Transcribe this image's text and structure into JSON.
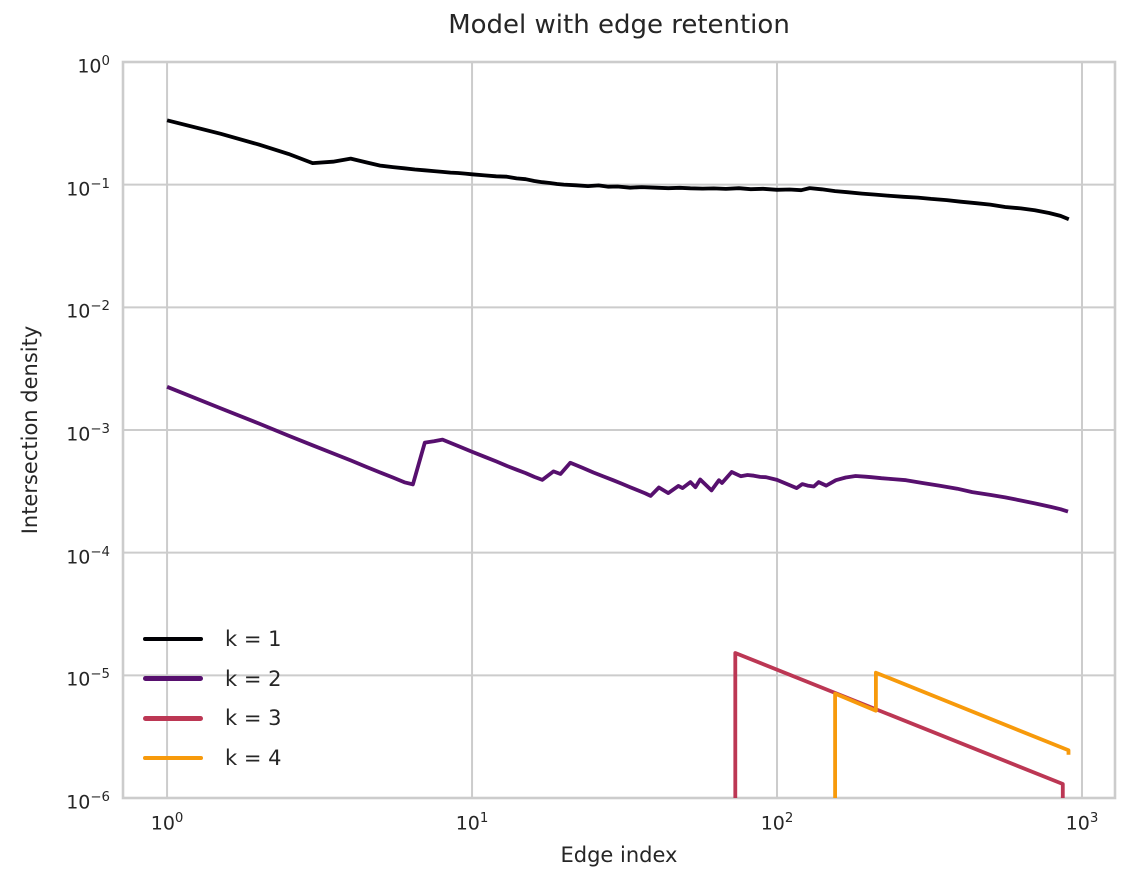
{
  "chart_data": {
    "type": "line",
    "title": "Model with edge retention",
    "xlabel": "Edge index",
    "ylabel": "Intersection density",
    "xscale": "log",
    "yscale": "log",
    "xlim": [
      0.717,
      1283
    ],
    "ylim": [
      1e-06,
      1
    ],
    "x_tick_exponents": [
      0,
      1,
      2,
      3
    ],
    "y_tick_exponents": [
      0,
      -1,
      -2,
      -3,
      -4,
      -5,
      -6
    ],
    "x_tick_labels": [
      "10^0",
      "10^1",
      "10^2",
      "10^3"
    ],
    "y_tick_labels": [
      "10^0",
      "10^-1",
      "10^-2",
      "10^-3",
      "10^-4",
      "10^-5",
      "10^-6"
    ],
    "grid": true,
    "grid_color": "#cccccc",
    "background_color": "#ffffff",
    "text_color": "#262626",
    "legend": {
      "position": "lower-left",
      "frame": false,
      "entries": [
        "k = 1",
        "k = 2",
        "k = 3",
        "k = 4"
      ]
    },
    "series": [
      {
        "name": "k = 1",
        "color": "#000004",
        "points": [
          [
            1,
            0.335
          ],
          [
            1.5,
            0.26
          ],
          [
            2,
            0.212
          ],
          [
            2.5,
            0.178
          ],
          [
            3,
            0.15
          ],
          [
            3.5,
            0.154
          ],
          [
            4,
            0.163
          ],
          [
            4.5,
            0.152
          ],
          [
            5,
            0.143
          ],
          [
            5.5,
            0.139
          ],
          [
            6,
            0.136
          ],
          [
            6.5,
            0.133
          ],
          [
            7,
            0.131
          ],
          [
            7.5,
            0.129
          ],
          [
            8,
            0.127
          ],
          [
            8.5,
            0.1255
          ],
          [
            9,
            0.1245
          ],
          [
            9.5,
            0.123
          ],
          [
            10,
            0.1215
          ],
          [
            11,
            0.119
          ],
          [
            12,
            0.117
          ],
          [
            13,
            0.1162
          ],
          [
            14,
            0.1125
          ],
          [
            15,
            0.1108
          ],
          [
            16,
            0.1072
          ],
          [
            17,
            0.1048
          ],
          [
            18,
            0.1032
          ],
          [
            19,
            0.1012
          ],
          [
            20,
            0.1002
          ],
          [
            22,
            0.0988
          ],
          [
            24,
            0.0973
          ],
          [
            26,
            0.0986
          ],
          [
            28,
            0.0962
          ],
          [
            30,
            0.0966
          ],
          [
            33,
            0.0945
          ],
          [
            36,
            0.0956
          ],
          [
            40,
            0.0944
          ],
          [
            44,
            0.0936
          ],
          [
            48,
            0.0942
          ],
          [
            52,
            0.0934
          ],
          [
            57,
            0.0928
          ],
          [
            62,
            0.0932
          ],
          [
            68,
            0.0924
          ],
          [
            75,
            0.0936
          ],
          [
            82,
            0.0918
          ],
          [
            90,
            0.0926
          ],
          [
            100,
            0.0908
          ],
          [
            110,
            0.0914
          ],
          [
            120,
            0.0902
          ],
          [
            128,
            0.0938
          ],
          [
            140,
            0.0916
          ],
          [
            155,
            0.0886
          ],
          [
            170,
            0.0868
          ],
          [
            190,
            0.0846
          ],
          [
            210,
            0.083
          ],
          [
            230,
            0.0814
          ],
          [
            260,
            0.0796
          ],
          [
            290,
            0.0784
          ],
          [
            320,
            0.0766
          ],
          [
            360,
            0.0748
          ],
          [
            400,
            0.0726
          ],
          [
            450,
            0.0706
          ],
          [
            500,
            0.0688
          ],
          [
            560,
            0.0658
          ],
          [
            630,
            0.064
          ],
          [
            700,
            0.0618
          ],
          [
            780,
            0.0588
          ],
          [
            850,
            0.0556
          ],
          [
            905,
            0.0522
          ]
        ]
      },
      {
        "name": "k = 2",
        "color": "#57106e",
        "points": [
          [
            1,
            0.00225
          ],
          [
            1.5,
            0.0015
          ],
          [
            2,
            0.00113
          ],
          [
            2.5,
            0.0009
          ],
          [
            3,
            0.00075
          ],
          [
            3.5,
            0.000645
          ],
          [
            4,
            0.000565
          ],
          [
            4.5,
            0.0005
          ],
          [
            5,
            0.00045
          ],
          [
            5.5,
            0.00041
          ],
          [
            6,
            0.000375
          ],
          [
            6.4,
            0.00036
          ],
          [
            7,
            0.00079
          ],
          [
            7.5,
            0.00081
          ],
          [
            8,
            0.000835
          ],
          [
            9,
            0.00074
          ],
          [
            10,
            0.000665
          ],
          [
            11,
            0.000605
          ],
          [
            12,
            0.000555
          ],
          [
            13,
            0.00051
          ],
          [
            14,
            0.000475
          ],
          [
            15,
            0.000445
          ],
          [
            16,
            0.000415
          ],
          [
            17,
            0.000392
          ],
          [
            18.5,
            0.00046
          ],
          [
            19.5,
            0.000438
          ],
          [
            21,
            0.00054
          ],
          [
            23,
            0.000492
          ],
          [
            25,
            0.00045
          ],
          [
            27,
            0.000418
          ],
          [
            29,
            0.00039
          ],
          [
            31,
            0.000364
          ],
          [
            33,
            0.000342
          ],
          [
            35,
            0.000322
          ],
          [
            37,
            0.000304
          ],
          [
            38.5,
            0.00029
          ],
          [
            41,
            0.00034
          ],
          [
            44,
            0.000306
          ],
          [
            47.5,
            0.00035
          ],
          [
            49,
            0.000336
          ],
          [
            52,
            0.000376
          ],
          [
            54,
            0.000342
          ],
          [
            56,
            0.000395
          ],
          [
            61,
            0.000322
          ],
          [
            64.5,
            0.00039
          ],
          [
            66,
            0.00037
          ],
          [
            71,
            0.000455
          ],
          [
            76,
            0.00042
          ],
          [
            80,
            0.00043
          ],
          [
            84,
            0.000424
          ],
          [
            88,
            0.000415
          ],
          [
            92,
            0.000412
          ],
          [
            100,
            0.000392
          ],
          [
            108,
            0.000362
          ],
          [
            116,
            0.000336
          ],
          [
            121,
            0.000362
          ],
          [
            126,
            0.000352
          ],
          [
            132,
            0.000346
          ],
          [
            137,
            0.000376
          ],
          [
            145,
            0.000352
          ],
          [
            156,
            0.00039
          ],
          [
            168,
            0.00041
          ],
          [
            181,
            0.000422
          ],
          [
            195,
            0.000416
          ],
          [
            204,
            0.000412
          ],
          [
            220,
            0.000405
          ],
          [
            240,
            0.000398
          ],
          [
            265,
            0.00039
          ],
          [
            300,
            0.00037
          ],
          [
            340,
            0.000352
          ],
          [
            390,
            0.000332
          ],
          [
            437,
            0.000312
          ],
          [
            500,
            0.000296
          ],
          [
            560,
            0.000282
          ],
          [
            630,
            0.000266
          ],
          [
            700,
            0.000252
          ],
          [
            790,
            0.000236
          ],
          [
            850,
            0.000226
          ],
          [
            900,
            0.000216
          ]
        ]
      },
      {
        "name": "k = 3",
        "color": "#bc3754",
        "points": [
          [
            73,
            1e-06
          ],
          [
            73,
            1.52e-05
          ],
          [
            865,
            1.3e-06
          ],
          [
            865,
            1e-06
          ]
        ]
      },
      {
        "name": "k = 4",
        "color": "#f79a0b",
        "points": [
          [
            155,
            1e-06
          ],
          [
            155,
            7.1e-06
          ],
          [
            211,
            5.15e-06
          ],
          [
            211,
            1.05e-05
          ],
          [
            903,
            2.45e-06
          ],
          [
            903,
            2.25e-06
          ]
        ]
      }
    ]
  }
}
